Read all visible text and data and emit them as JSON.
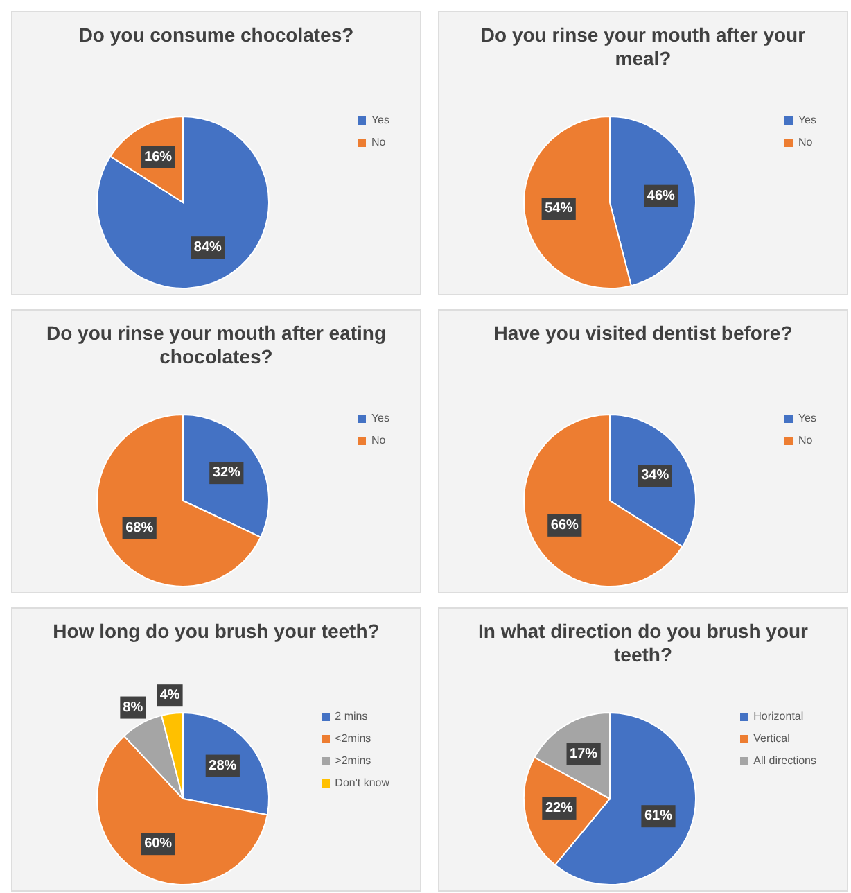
{
  "chart_data": [
    {
      "type": "pie",
      "title": "Do you consume chocolates?",
      "categories": [
        "Yes",
        "No"
      ],
      "values": [
        84,
        16
      ],
      "colors": [
        "#4472c4",
        "#ed7d31"
      ],
      "value_labels": [
        "84%",
        "16%"
      ],
      "legend": "right"
    },
    {
      "type": "pie",
      "title": "Do you rinse your mouth after your meal?",
      "categories": [
        "Yes",
        "No"
      ],
      "values": [
        46,
        54
      ],
      "colors": [
        "#4472c4",
        "#ed7d31"
      ],
      "value_labels": [
        "46%",
        "54%"
      ],
      "legend": "right"
    },
    {
      "type": "pie",
      "title": "Do you rinse your mouth after eating chocolates?",
      "categories": [
        "Yes",
        "No"
      ],
      "values": [
        32,
        68
      ],
      "colors": [
        "#4472c4",
        "#ed7d31"
      ],
      "value_labels": [
        "32%",
        "68%"
      ],
      "legend": "right"
    },
    {
      "type": "pie",
      "title": "Have you visited dentist before?",
      "categories": [
        "Yes",
        "No"
      ],
      "values": [
        34,
        66
      ],
      "colors": [
        "#4472c4",
        "#ed7d31"
      ],
      "value_labels": [
        "34%",
        "66%"
      ],
      "legend": "right"
    },
    {
      "type": "pie",
      "title": "How long do you brush your teeth?",
      "categories": [
        "2 mins",
        "<2mins",
        ">2mins",
        "Don't know"
      ],
      "values": [
        28,
        60,
        8,
        4
      ],
      "colors": [
        "#4472c4",
        "#ed7d31",
        "#a5a5a5",
        "#ffc000"
      ],
      "value_labels": [
        "28%",
        "60%",
        "8%",
        "4%"
      ],
      "legend": "right"
    },
    {
      "type": "pie",
      "title": "In what direction do you brush your teeth?",
      "categories": [
        "Horizontal",
        "Vertical",
        "All directions"
      ],
      "values": [
        61,
        22,
        17
      ],
      "colors": [
        "#4472c4",
        "#ed7d31",
        "#a5a5a5"
      ],
      "value_labels": [
        "61%",
        "22%",
        "17%"
      ],
      "legend": "right"
    }
  ]
}
